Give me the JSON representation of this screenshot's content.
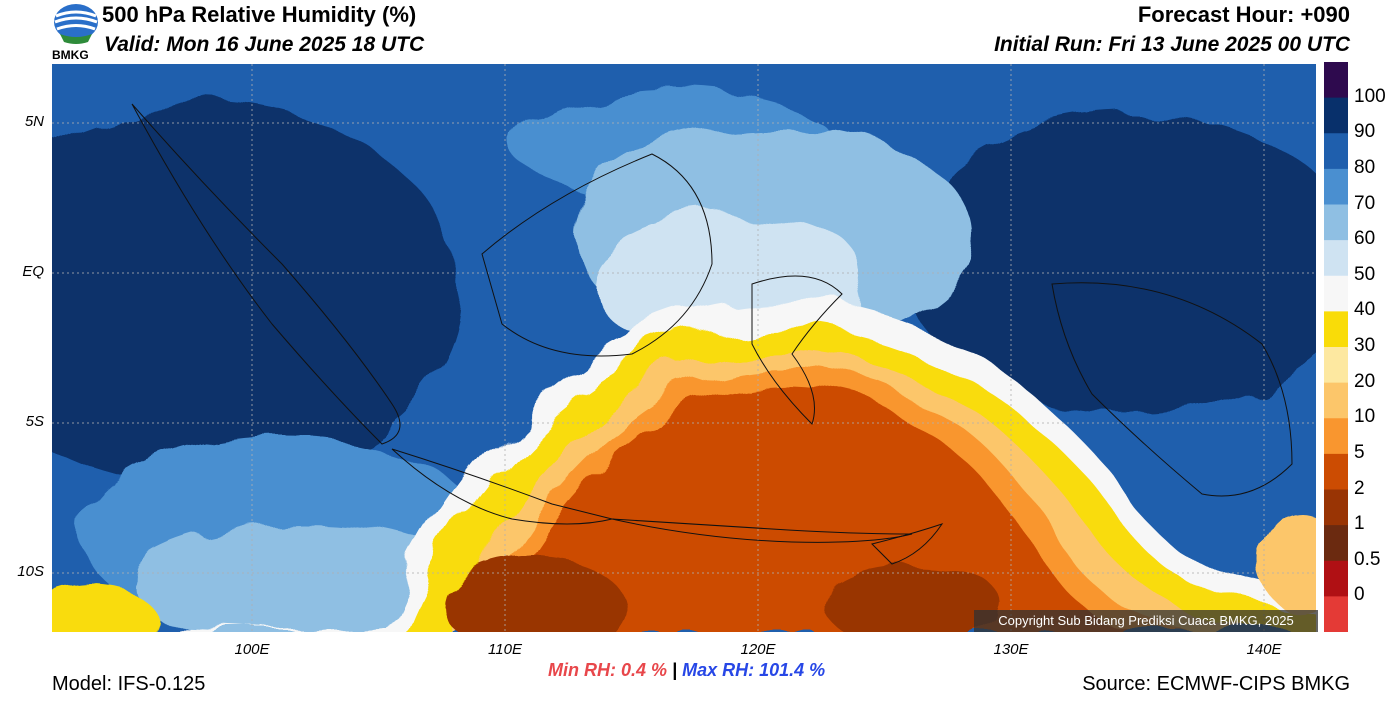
{
  "header": {
    "title": "500 hPa Relative Humidity (%)",
    "valid": "Valid: Mon 16 June 2025 18 UTC",
    "forecast_hour": "Forecast Hour: +090",
    "initial_run": "Initial Run: Fri 13 June 2025 00 UTC",
    "logo_text": "BMKG"
  },
  "map": {
    "lat_labels": [
      "5N",
      "EQ",
      "5S",
      "10S"
    ],
    "lon_labels": [
      "100E",
      "110E",
      "120E",
      "130E",
      "140E"
    ],
    "copyright": "Copyright Sub Bidang Prediksi Cuaca BMKG, 2025"
  },
  "colorbar": {
    "levels": [
      "100",
      "90",
      "80",
      "70",
      "60",
      "50",
      "40",
      "30",
      "20",
      "10",
      "5",
      "2",
      "1",
      "0.5",
      "0"
    ],
    "colors": [
      "#2e0a4e",
      "#08306b",
      "#1f5fad",
      "#4a8fd0",
      "#8fbfe3",
      "#cfe3f2",
      "#f7f7f7",
      "#f9dc08",
      "#fde8a0",
      "#fcc66a",
      "#f9962f",
      "#cc4c02",
      "#993404",
      "#6b2a10",
      "#b01014",
      "#e43a36"
    ]
  },
  "stats": {
    "min_label": "Min RH:",
    "min_value": "0.4 %",
    "separator": "|",
    "max_label": "Max RH: 101.4 %"
  },
  "footer": {
    "model": "Model: IFS-0.125",
    "source": "Source: ECMWF-CIPS BMKG"
  }
}
